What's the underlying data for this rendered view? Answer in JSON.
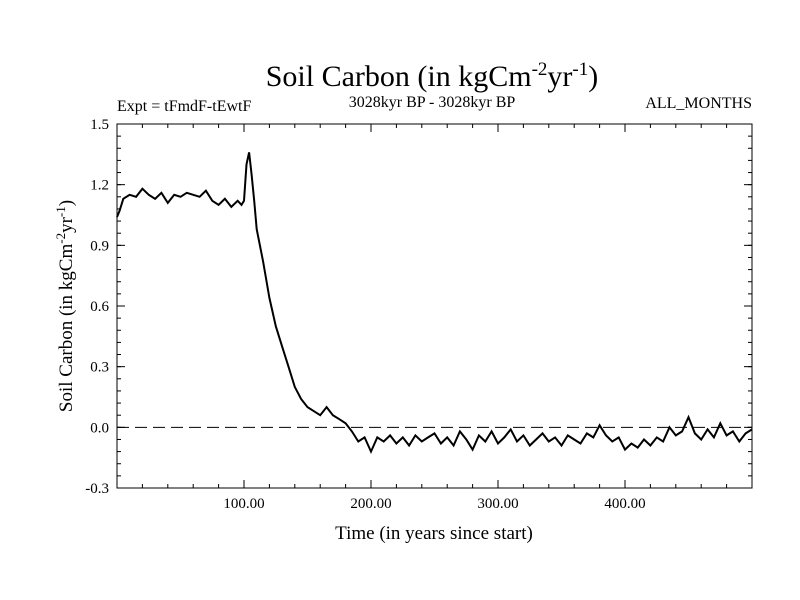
{
  "chart_data": {
    "type": "line",
    "title": "Soil Carbon (in kgCm",
    "title_sup1": "-2",
    "title_mid": "yr",
    "title_sup2": "-1",
    "title_end": ")",
    "subtitle_left": "Expt = tFmdF-tEwtF",
    "subtitle_center": "3028kyr BP - 3028kyr BP",
    "subtitle_right": "ALL_MONTHS",
    "xlabel": "Time (in years since start)",
    "ylabel": "Soil Carbon (in kgCm",
    "ylabel_sup1": "-2",
    "ylabel_mid": "yr",
    "ylabel_sup2": "-1",
    "ylabel_end": ")",
    "xlim": [
      0,
      500
    ],
    "ylim": [
      -0.3,
      1.5
    ],
    "x_ticks": [
      {
        "value": 100,
        "label": "100.00"
      },
      {
        "value": 200,
        "label": "200.00"
      },
      {
        "value": 300,
        "label": "300.00"
      },
      {
        "value": 400,
        "label": "400.00"
      }
    ],
    "y_ticks": [
      {
        "value": -0.3,
        "label": "-0.3"
      },
      {
        "value": 0.0,
        "label": "0.0"
      },
      {
        "value": 0.3,
        "label": "0.3"
      },
      {
        "value": 0.6,
        "label": "0.6"
      },
      {
        "value": 0.9,
        "label": "0.9"
      },
      {
        "value": 1.2,
        "label": "1.2"
      },
      {
        "value": 1.5,
        "label": "1.5"
      }
    ],
    "reference_line": {
      "y": 0.0,
      "style": "dashed"
    },
    "series": [
      {
        "name": "Soil Carbon",
        "x": [
          0,
          2,
          5,
          10,
          15,
          20,
          25,
          30,
          35,
          40,
          45,
          50,
          55,
          60,
          65,
          70,
          75,
          80,
          85,
          90,
          95,
          98,
          100,
          102,
          104,
          106,
          108,
          110,
          115,
          120,
          125,
          130,
          135,
          140,
          145,
          150,
          155,
          160,
          165,
          170,
          175,
          180,
          185,
          190,
          195,
          200,
          205,
          210,
          215,
          220,
          225,
          230,
          235,
          240,
          245,
          250,
          255,
          260,
          265,
          270,
          275,
          280,
          285,
          290,
          295,
          300,
          305,
          310,
          315,
          320,
          325,
          330,
          335,
          340,
          345,
          350,
          355,
          360,
          365,
          370,
          375,
          380,
          385,
          390,
          395,
          400,
          405,
          410,
          415,
          420,
          425,
          430,
          435,
          440,
          445,
          450,
          455,
          460,
          465,
          470,
          475,
          480,
          485,
          490,
          495,
          500
        ],
        "y": [
          1.04,
          1.07,
          1.13,
          1.15,
          1.14,
          1.18,
          1.15,
          1.13,
          1.16,
          1.11,
          1.15,
          1.14,
          1.16,
          1.15,
          1.14,
          1.17,
          1.12,
          1.1,
          1.13,
          1.09,
          1.12,
          1.1,
          1.12,
          1.3,
          1.36,
          1.25,
          1.12,
          0.98,
          0.82,
          0.64,
          0.5,
          0.4,
          0.3,
          0.2,
          0.14,
          0.1,
          0.08,
          0.06,
          0.1,
          0.06,
          0.04,
          0.02,
          -0.02,
          -0.07,
          -0.05,
          -0.12,
          -0.05,
          -0.07,
          -0.04,
          -0.08,
          -0.05,
          -0.09,
          -0.04,
          -0.07,
          -0.05,
          -0.03,
          -0.08,
          -0.05,
          -0.09,
          -0.02,
          -0.06,
          -0.11,
          -0.04,
          -0.07,
          -0.02,
          -0.08,
          -0.05,
          -0.01,
          -0.07,
          -0.04,
          -0.09,
          -0.06,
          -0.03,
          -0.07,
          -0.05,
          -0.09,
          -0.04,
          -0.06,
          -0.08,
          -0.03,
          -0.05,
          0.01,
          -0.04,
          -0.07,
          -0.05,
          -0.11,
          -0.08,
          -0.1,
          -0.06,
          -0.09,
          -0.05,
          -0.07,
          0.0,
          -0.04,
          -0.02,
          0.05,
          -0.03,
          -0.06,
          -0.01,
          -0.05,
          0.02,
          -0.04,
          -0.02,
          -0.07,
          -0.03,
          -0.01
        ]
      }
    ]
  }
}
